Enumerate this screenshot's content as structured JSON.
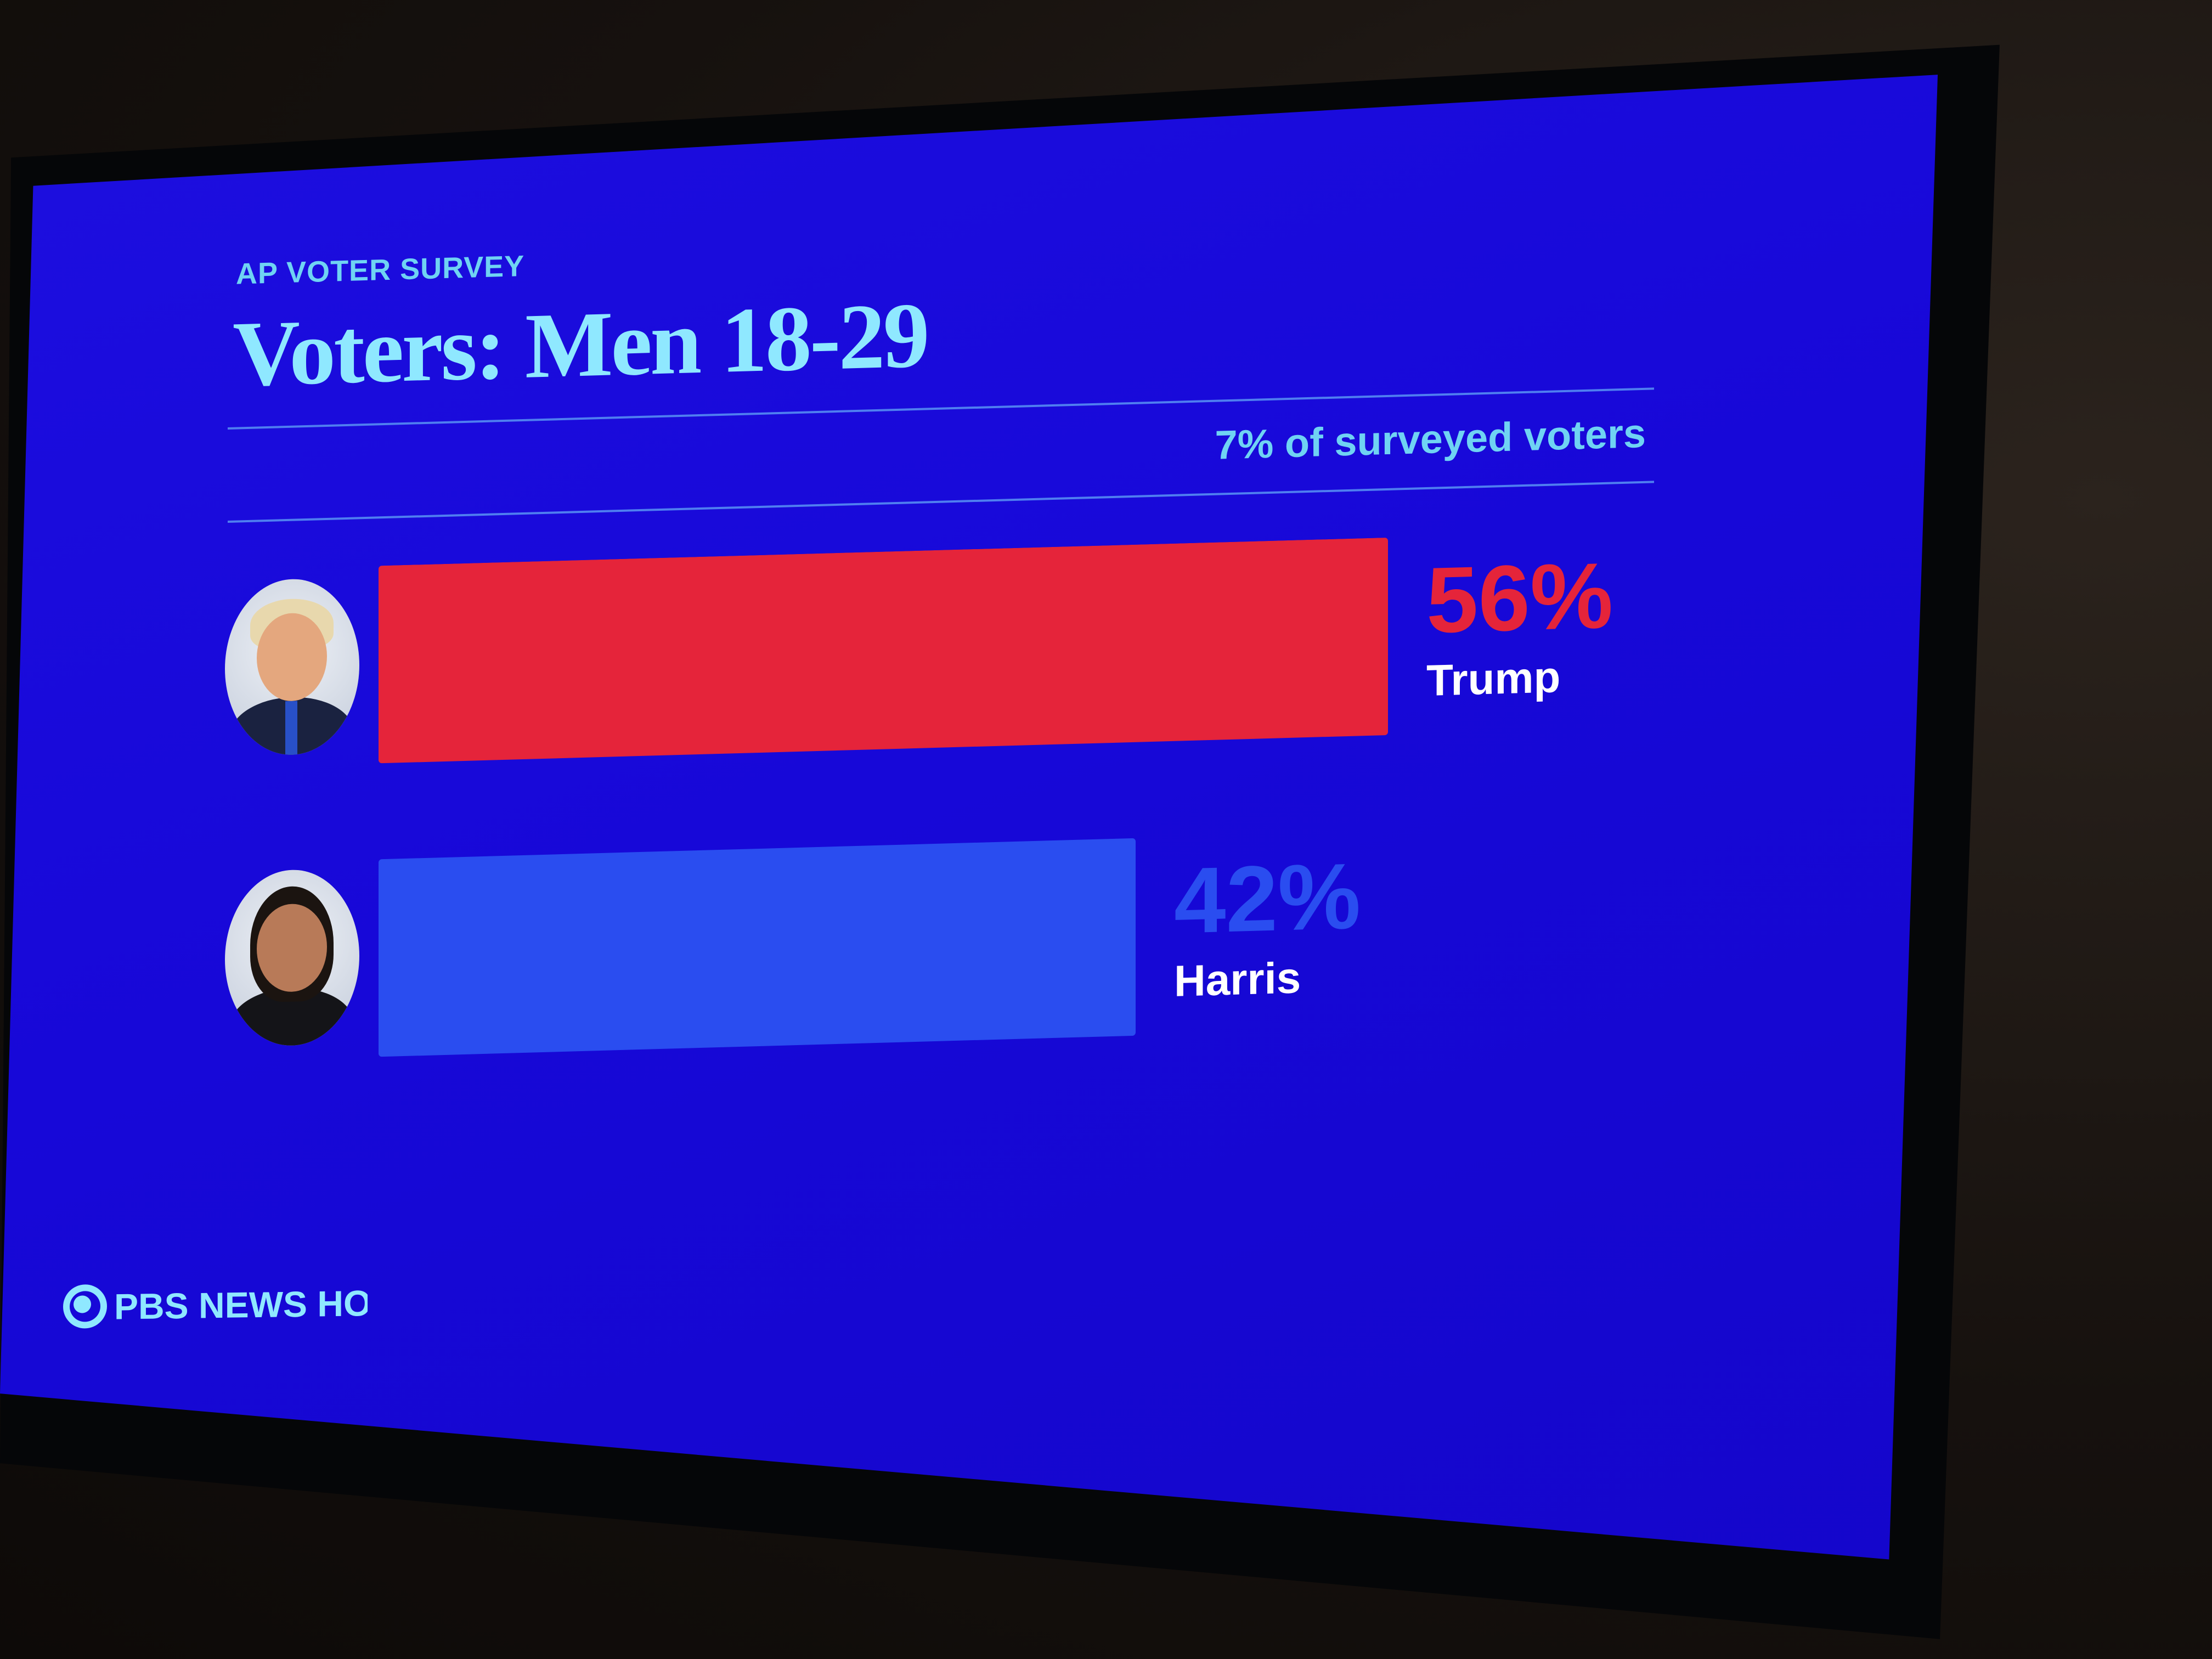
{
  "header": {
    "kicker": "AP VOTER SURVEY",
    "title": "Voters: Men 18-29",
    "subnote": "7% of surveyed voters"
  },
  "brand": {
    "name": "PBS NEWS HOUR"
  },
  "colors": {
    "background": "#1708d8",
    "trump": "#e5243a",
    "harris": "#2a4df0",
    "accent_text": "#6fd3f3"
  },
  "chart_data": {
    "type": "bar",
    "orientation": "horizontal",
    "categories": [
      "Trump",
      "Harris"
    ],
    "values": [
      56,
      42
    ],
    "value_labels": [
      "56%",
      "42%"
    ],
    "colors": [
      "#e5243a",
      "#2a4df0"
    ],
    "title": "Voters: Men 18-29",
    "xlim": [
      0,
      56
    ]
  }
}
